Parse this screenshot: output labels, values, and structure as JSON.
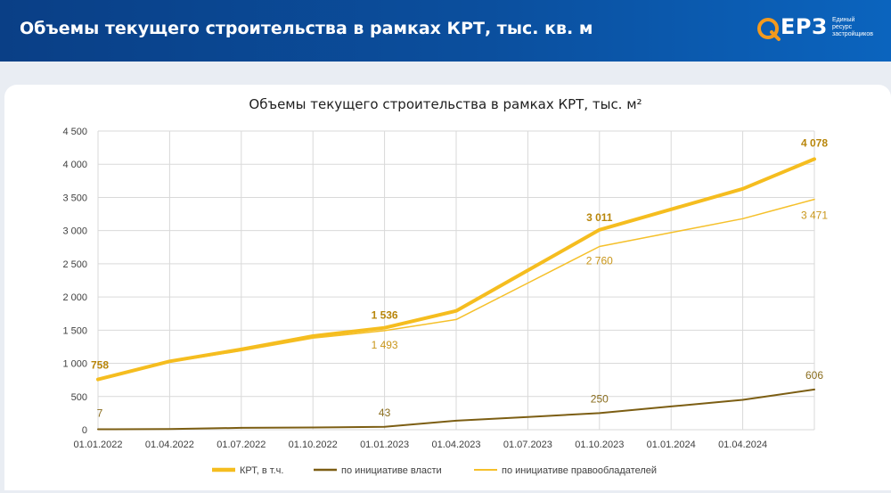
{
  "header": {
    "title": "Объемы текущего строительства в рамках КРТ, тыс. кв. м",
    "logo_text": "ЕРЗ",
    "logo_sub": [
      "Единый",
      "ресурс",
      "застройщиков"
    ]
  },
  "chart_data": {
    "type": "line",
    "title": "Объемы текущего строительства в рамках КРТ, тыс. м²",
    "xlabel": "",
    "ylabel": "",
    "ylim": [
      0,
      4500
    ],
    "yticks": [
      0,
      500,
      1000,
      1500,
      2000,
      2500,
      3000,
      3500,
      4000,
      4500
    ],
    "ytick_labels": [
      "0",
      "500",
      "1 000",
      "1 500",
      "2 000",
      "2 500",
      "3 000",
      "3 500",
      "4 000",
      "4 500"
    ],
    "x_tick_labels": [
      "01.01.2022",
      "01.04.2022",
      "01.07.2022",
      "01.10.2022",
      "01.01.2023",
      "01.04.2023",
      "01.07.2023",
      "01.10.2023",
      "01.01.2024",
      "01.04.2024"
    ],
    "x": [
      "01.01.2022",
      "01.04.2022",
      "01.07.2022",
      "01.10.2022",
      "01.01.2023",
      "01.04.2023",
      "01.07.2023",
      "01.10.2023",
      "01.01.2024",
      "01.04.2024",
      "01.07.2024"
    ],
    "grid": true,
    "legend_position": "bottom",
    "series": [
      {
        "name": "КРТ, в т.ч.",
        "color": "#f5bd1f",
        "values": [
          758,
          1030,
          1210,
          1410,
          1536,
          1790,
          null,
          3011,
          null,
          3630,
          4078
        ],
        "labels": [
          {
            "index": 0,
            "text": "758"
          },
          {
            "index": 4,
            "text": "1 536"
          },
          {
            "index": 7,
            "text": "3 011"
          },
          {
            "index": 10,
            "text": "4 078"
          }
        ]
      },
      {
        "name": "по инициативе власти",
        "color": "#7c5e13",
        "values": [
          7,
          10,
          28,
          33,
          43,
          135,
          null,
          250,
          null,
          450,
          606
        ],
        "labels": [
          {
            "index": 0,
            "text": "7"
          },
          {
            "index": 4,
            "text": "43"
          },
          {
            "index": 7,
            "text": "250"
          },
          {
            "index": 10,
            "text": "606"
          }
        ]
      },
      {
        "name": "по инициативе правообладателей",
        "color": "#f5c02a",
        "values": [
          751,
          1020,
          1190,
          1380,
          1493,
          1660,
          null,
          2760,
          null,
          3180,
          3471
        ],
        "labels": [
          {
            "index": 4,
            "text": "1 493"
          },
          {
            "index": 7,
            "text": "2 760"
          },
          {
            "index": 10,
            "text": "3 471"
          }
        ]
      }
    ]
  }
}
